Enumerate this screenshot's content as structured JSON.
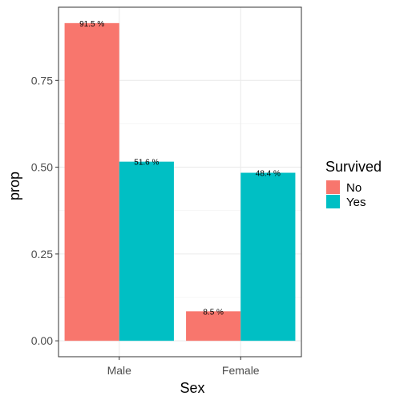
{
  "chart_data": {
    "type": "bar",
    "categories": [
      "Male",
      "Female"
    ],
    "series": [
      {
        "name": "No",
        "values": [
          0.915,
          0.085
        ],
        "labels": [
          "91.5 %",
          "8.5 %"
        ],
        "color": "#F8766D"
      },
      {
        "name": "Yes",
        "values": [
          0.516,
          0.484
        ],
        "labels": [
          "51.6 %",
          "48.4 %"
        ],
        "color": "#00BFC4"
      }
    ],
    "xlabel": "Sex",
    "ylabel": "prop",
    "ylim": [
      -0.0458,
      0.9608
    ],
    "yticks": [
      0.0,
      0.25,
      0.5,
      0.75
    ],
    "ytick_labels": [
      "0.00",
      "0.25",
      "0.50",
      "0.75"
    ],
    "grid": true,
    "legend": {
      "title": "Survived",
      "placement": "right"
    }
  }
}
